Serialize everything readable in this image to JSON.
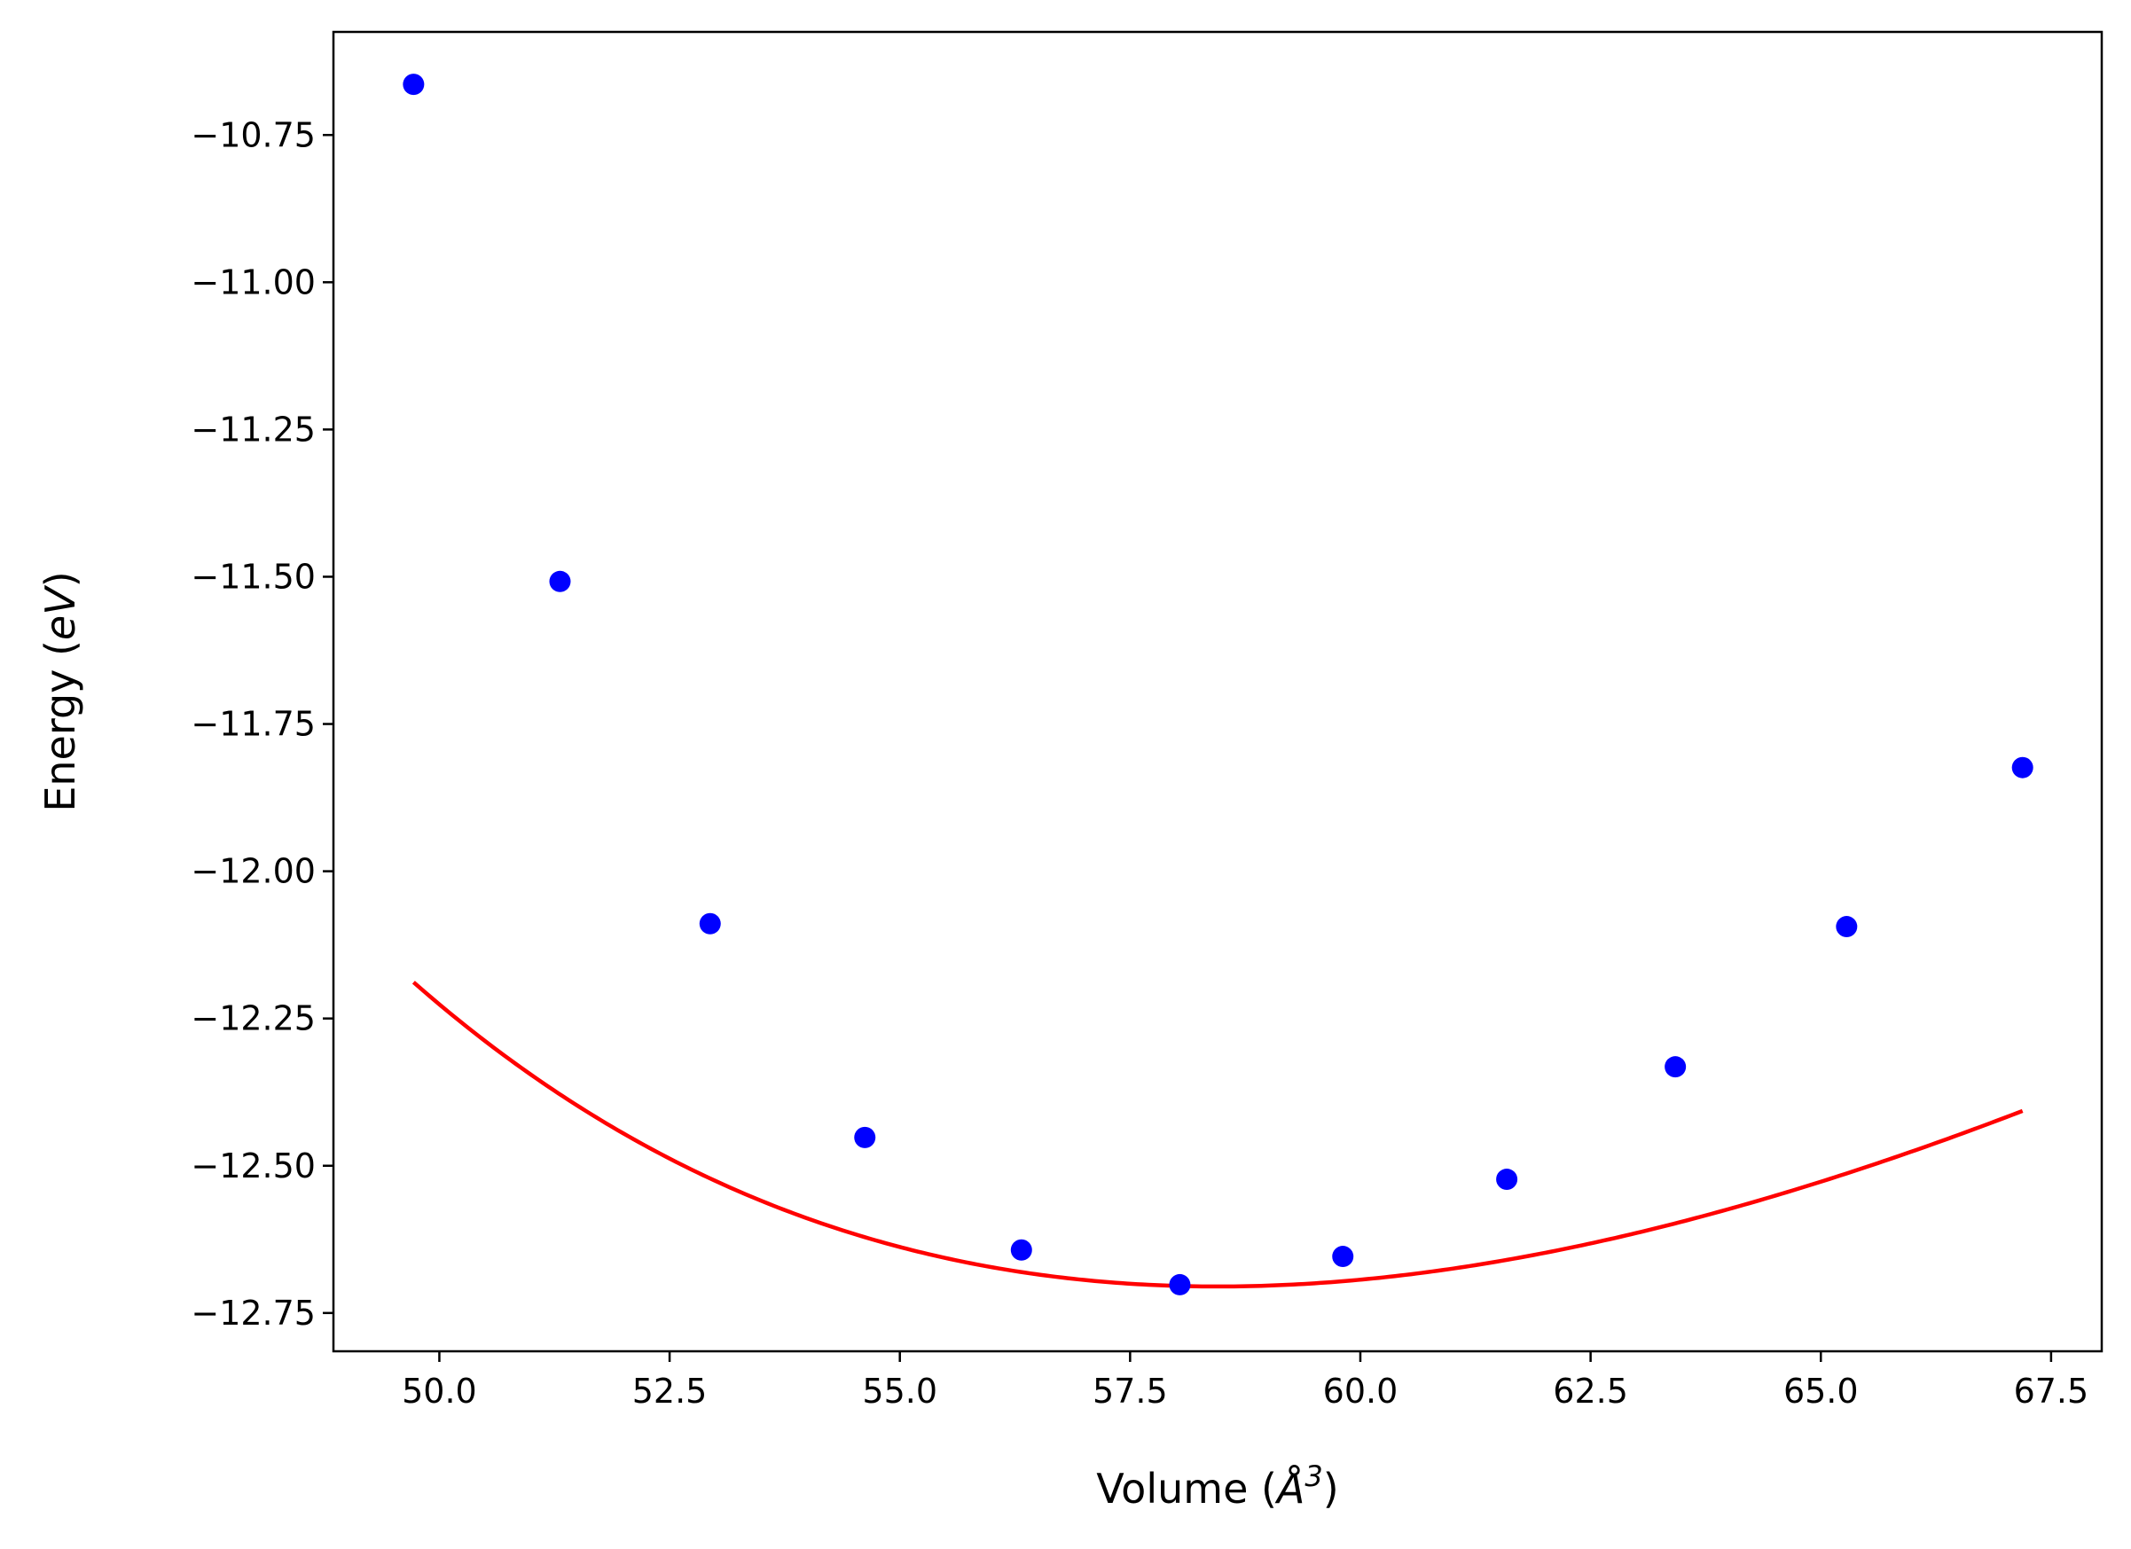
{
  "chart_data": {
    "type": "line",
    "title": "",
    "xlabel": {
      "prefix": "Volume (",
      "symbol": "Å",
      "power": "3",
      "suffix": ")"
    },
    "ylabel": {
      "prefix": "Energy (",
      "unit": "eV",
      "suffix": ")"
    },
    "xlim": [
      48.85,
      68.05
    ],
    "ylim": [
      -12.815,
      -10.575
    ],
    "xticks": [
      50.0,
      52.5,
      55.0,
      57.5,
      60.0,
      62.5,
      65.0,
      67.5
    ],
    "xtick_labels": [
      "50.0",
      "52.5",
      "55.0",
      "57.5",
      "60.0",
      "62.5",
      "65.0",
      "67.5"
    ],
    "yticks": [
      -10.75,
      -11.0,
      -11.25,
      -11.5,
      -11.75,
      -12.0,
      -12.25,
      -12.5,
      -12.75
    ],
    "ytick_labels": [
      "−10.75",
      "−11.00",
      "−11.25",
      "−11.50",
      "−11.75",
      "−12.00",
      "−12.25",
      "−12.50",
      "−12.75"
    ],
    "grid": false,
    "legend": "none",
    "series": [
      {
        "kind": "scatter",
        "color": "#0000ff",
        "x": [
          49.72,
          51.31,
          52.94,
          54.62,
          56.32,
          58.04,
          59.81,
          61.59,
          63.42,
          65.28,
          67.19
        ],
        "y": [
          -10.664,
          -11.508,
          -12.089,
          -12.452,
          -12.643,
          -12.702,
          -12.654,
          -12.523,
          -12.332,
          -12.094,
          -11.824
        ]
      },
      {
        "kind": "fit",
        "color": "#ff0000",
        "V0": 58.45,
        "E0": -12.705,
        "B0": 0.589,
        "B0p": 4.5
      }
    ]
  }
}
